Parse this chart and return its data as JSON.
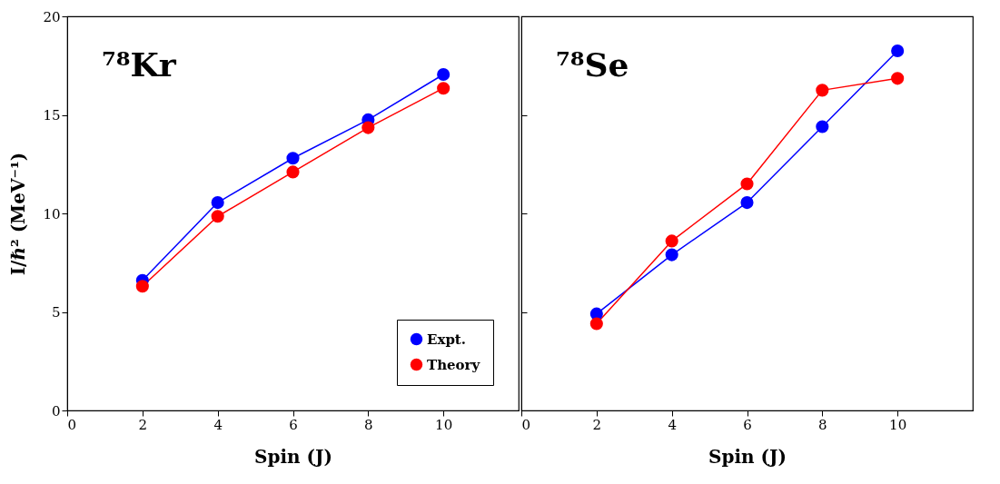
{
  "chart_data": [
    {
      "type": "line",
      "title": "⁷⁸Kr",
      "xlabel": "Spin (J)",
      "ylabel": "I/ℏ² (MeV⁻¹)",
      "x": [
        2,
        4,
        6,
        8,
        10
      ],
      "xlim": [
        0,
        12
      ],
      "xticks": [
        0,
        2,
        4,
        6,
        8,
        10
      ],
      "ylim": [
        0,
        20
      ],
      "yticks": [
        0,
        5,
        10,
        15,
        20
      ],
      "grid": false,
      "legend": "bottom right",
      "marker": "circle",
      "series": [
        {
          "name": "Expt.",
          "color": "#0000ff",
          "values": [
            6.6,
            10.55,
            12.8,
            14.75,
            17.05
          ]
        },
        {
          "name": "Theory",
          "color": "#ff0000",
          "values": [
            6.3,
            9.85,
            12.1,
            14.35,
            16.35
          ]
        }
      ]
    },
    {
      "type": "line",
      "title": "⁷⁸Se",
      "xlabel": "Spin (J)",
      "x": [
        2,
        4,
        6,
        8,
        10
      ],
      "xlim": [
        0,
        12
      ],
      "xticks": [
        0,
        2,
        4,
        6,
        8,
        10
      ],
      "ylim": [
        0,
        20
      ],
      "yticks": [
        0,
        5,
        10,
        15,
        20
      ],
      "grid": false,
      "legend": false,
      "marker": "circle",
      "tick_labels": "x",
      "series": [
        {
          "color": "#0000ff",
          "values": [
            4.9,
            7.9,
            10.55,
            14.4,
            18.25
          ]
        },
        {
          "color": "#ff0000",
          "values": [
            4.4,
            8.6,
            11.5,
            16.25,
            16.85
          ]
        }
      ]
    }
  ]
}
